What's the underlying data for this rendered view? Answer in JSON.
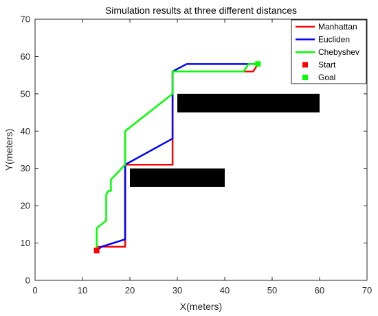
{
  "chart_data": {
    "type": "line",
    "title": "Simulation results at three different distances",
    "xlabel": "X(meters)",
    "ylabel": "Y(meters)",
    "xlim": [
      0,
      70
    ],
    "ylim": [
      0,
      70
    ],
    "xticks": [
      0,
      10,
      20,
      30,
      40,
      50,
      60,
      70
    ],
    "yticks": [
      0,
      10,
      20,
      30,
      40,
      50,
      60,
      70
    ],
    "grid": false,
    "legend_position": "top-right",
    "obstacles": [
      {
        "x": [
          30,
          60
        ],
        "y": [
          45,
          50
        ],
        "color": "#000000"
      },
      {
        "x": [
          20,
          40
        ],
        "y": [
          25,
          30
        ],
        "color": "#000000"
      }
    ],
    "series": [
      {
        "name": "Manhattan",
        "color": "#ff0000",
        "x": [
          13,
          13,
          19,
          19,
          19,
          29,
          29,
          29,
          46,
          47
        ],
        "y": [
          8,
          9,
          9,
          26,
          31,
          31,
          40,
          56,
          56,
          58
        ]
      },
      {
        "name": "Eucliden",
        "color": "#0000ff",
        "x": [
          13,
          14,
          19,
          19,
          29,
          29,
          29,
          32,
          47
        ],
        "y": [
          8,
          9,
          11,
          31,
          38,
          50,
          56,
          58,
          58
        ]
      },
      {
        "name": "Chebyshev",
        "color": "#00ff00",
        "x": [
          13,
          13,
          15,
          15,
          15.5,
          16,
          16,
          19,
          19,
          29,
          29,
          44,
          45,
          47
        ],
        "y": [
          8,
          14,
          16,
          23,
          24,
          24,
          27,
          31,
          40,
          50,
          56,
          56,
          58,
          58
        ]
      }
    ],
    "markers": [
      {
        "name": "Start",
        "color": "#ff0000",
        "x": 13,
        "y": 8
      },
      {
        "name": "Goal",
        "color": "#00ff00",
        "x": 47,
        "y": 58
      }
    ]
  }
}
